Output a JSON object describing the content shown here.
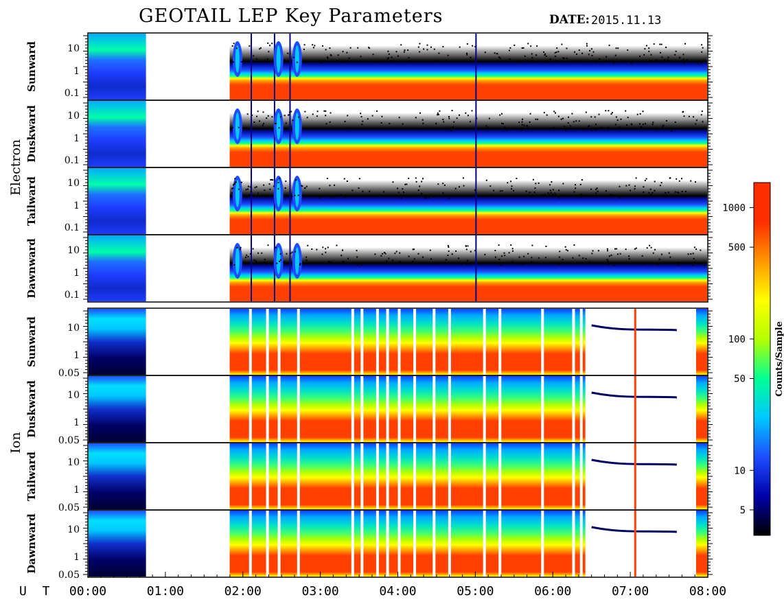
{
  "title": "GEOTAIL LEP Key Parameters",
  "date_label": "DATE:",
  "date_value": "2015.11.13",
  "groups": [
    {
      "label": "Electron",
      "panels": [
        "Sunward",
        "Duskward",
        "Tailward",
        "Dawnward"
      ]
    },
    {
      "label": "Ion",
      "panels": [
        "Sunward",
        "Duskward",
        "Tailward",
        "Dawnward"
      ]
    }
  ],
  "electron_y_ticks": [
    "10",
    "1",
    "0.1"
  ],
  "ion_y_ticks": [
    "10",
    "1",
    "0.05"
  ],
  "ut_label": "U T",
  "time_ticks": [
    "00:00",
    "01:00",
    "02:00",
    "03:00",
    "04:00",
    "05:00",
    "06:00",
    "07:00",
    "08:00"
  ],
  "colorbar": {
    "label": "Counts/Sample",
    "ticks": [
      "1000",
      "500",
      "100",
      "50",
      "10",
      "5"
    ],
    "colors": [
      "#000000",
      "#0000aa",
      "#1e4dff",
      "#00c8ff",
      "#00ff96",
      "#b4ff00",
      "#ffff00",
      "#ff9600",
      "#ff2d00",
      "#ff2d00"
    ]
  },
  "chart_data": {
    "type": "heatmap",
    "title": "GEOTAIL LEP Key Parameters",
    "date": "2015.11.13",
    "x_axis": {
      "label": "U T",
      "range": [
        "00:00",
        "08:00"
      ],
      "ticks": [
        "00:00",
        "01:00",
        "02:00",
        "03:00",
        "04:00",
        "05:00",
        "06:00",
        "07:00",
        "08:00"
      ]
    },
    "data_gaps_ut": [
      [
        "00:45",
        "01:50"
      ]
    ],
    "panels": [
      {
        "species": "Electron",
        "direction": "Sunward",
        "y_ticks": [
          "10",
          "1",
          "0.1"
        ],
        "log_scale": true
      },
      {
        "species": "Electron",
        "direction": "Duskward",
        "y_ticks": [
          "10",
          "1",
          "0.1"
        ],
        "log_scale": true
      },
      {
        "species": "Electron",
        "direction": "Tailward",
        "y_ticks": [
          "10",
          "1",
          "0.1"
        ],
        "log_scale": true
      },
      {
        "species": "Electron",
        "direction": "Dawnward",
        "y_ticks": [
          "10",
          "1",
          "0.1"
        ],
        "log_scale": true
      },
      {
        "species": "Ion",
        "direction": "Sunward",
        "y_ticks": [
          "10",
          "1",
          "0.05"
        ],
        "log_scale": true
      },
      {
        "species": "Ion",
        "direction": "Duskward",
        "y_ticks": [
          "10",
          "1",
          "0.05"
        ],
        "log_scale": true
      },
      {
        "species": "Ion",
        "direction": "Tailward",
        "y_ticks": [
          "10",
          "1",
          "0.05"
        ],
        "log_scale": true
      },
      {
        "species": "Ion",
        "direction": "Dawnward",
        "y_ticks": [
          "10",
          "1",
          "0.05"
        ],
        "log_scale": true
      }
    ],
    "colorbar": {
      "label": "Counts/Sample",
      "scale": "log",
      "ticks": [
        1000,
        500,
        100,
        50,
        10,
        5
      ]
    }
  }
}
